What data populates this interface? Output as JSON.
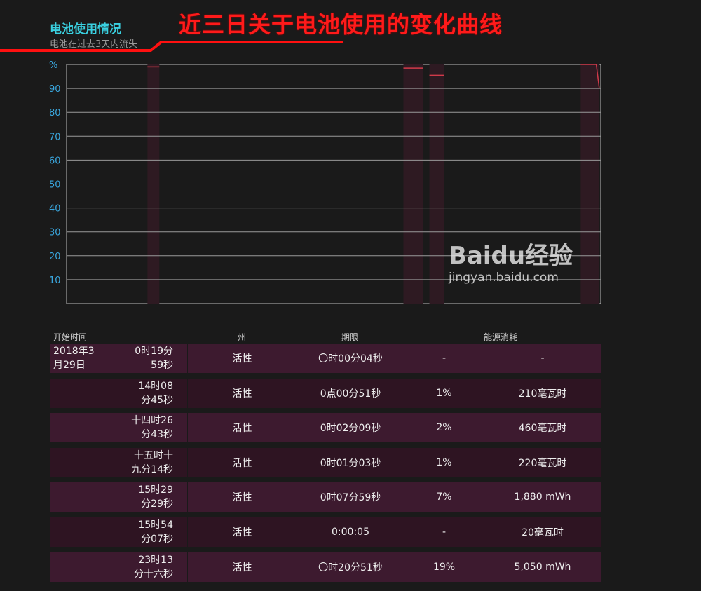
{
  "header": {
    "title": "电池使用情况",
    "subtitle": "电池在过去3天内流失",
    "annotation": "近三日关于电池使用的变化曲线"
  },
  "chart_data": {
    "type": "line",
    "ylabel": "%",
    "ylim": [
      0,
      100
    ],
    "yticks": [
      10,
      20,
      30,
      40,
      50,
      60,
      70,
      80,
      90
    ],
    "grid": true,
    "x_range_hours": [
      0,
      72
    ],
    "sessions": [
      {
        "x": [
          10.9,
          12.5
        ],
        "y": [
          99,
          99
        ]
      },
      {
        "x": [
          45.4,
          48.0
        ],
        "y": [
          98.5,
          98.5
        ]
      },
      {
        "x": [
          48.9,
          50.9
        ],
        "y": [
          95.5,
          95.5
        ]
      },
      {
        "x": [
          69.3,
          71.4,
          71.8
        ],
        "y": [
          100,
          100,
          90
        ]
      }
    ],
    "line_color": "#d03a4a",
    "session_shade": "#2e1a22",
    "y_tick_color": "#3aa8e0"
  },
  "table": {
    "headers": [
      "开始时间",
      "州",
      "期限",
      "能源消耗"
    ],
    "rows": [
      {
        "date": "2018年3月29日",
        "start1": "0时19分",
        "start2": "59秒",
        "state": "活性",
        "duration": "〇时00分04秒",
        "percent": "-",
        "energy": "-"
      },
      {
        "start1": "14时08",
        "start2": "分45秒",
        "state": "活性",
        "duration": "0点00分51秒",
        "percent": "1%",
        "energy": "210毫瓦时"
      },
      {
        "start1": "十四时26",
        "start2": "分43秒",
        "state": "活性",
        "duration": "0时02分09秒",
        "percent": "2%",
        "energy": "460毫瓦时"
      },
      {
        "start1": "十五时十",
        "start2": "九分14秒",
        "state": "活性",
        "duration": "0时01分03秒",
        "percent": "1%",
        "energy": "220毫瓦时"
      },
      {
        "start1": "15时29",
        "start2": "分29秒",
        "state": "活性",
        "duration": "0时07分59秒",
        "percent": "7%",
        "energy": "1,880 mWh"
      },
      {
        "start1": "15时54",
        "start2": "分07秒",
        "state": "活性",
        "duration": "0:00:05",
        "percent": "-",
        "energy": "20毫瓦时"
      },
      {
        "start1": "23时13",
        "start2": "分十六秒",
        "state": "活性",
        "duration": "〇时20分51秒",
        "percent": "19%",
        "energy": "5,050 mWh"
      }
    ]
  },
  "watermark": {
    "brand": "Baidu经验",
    "url": "jingyan.baidu.com"
  }
}
